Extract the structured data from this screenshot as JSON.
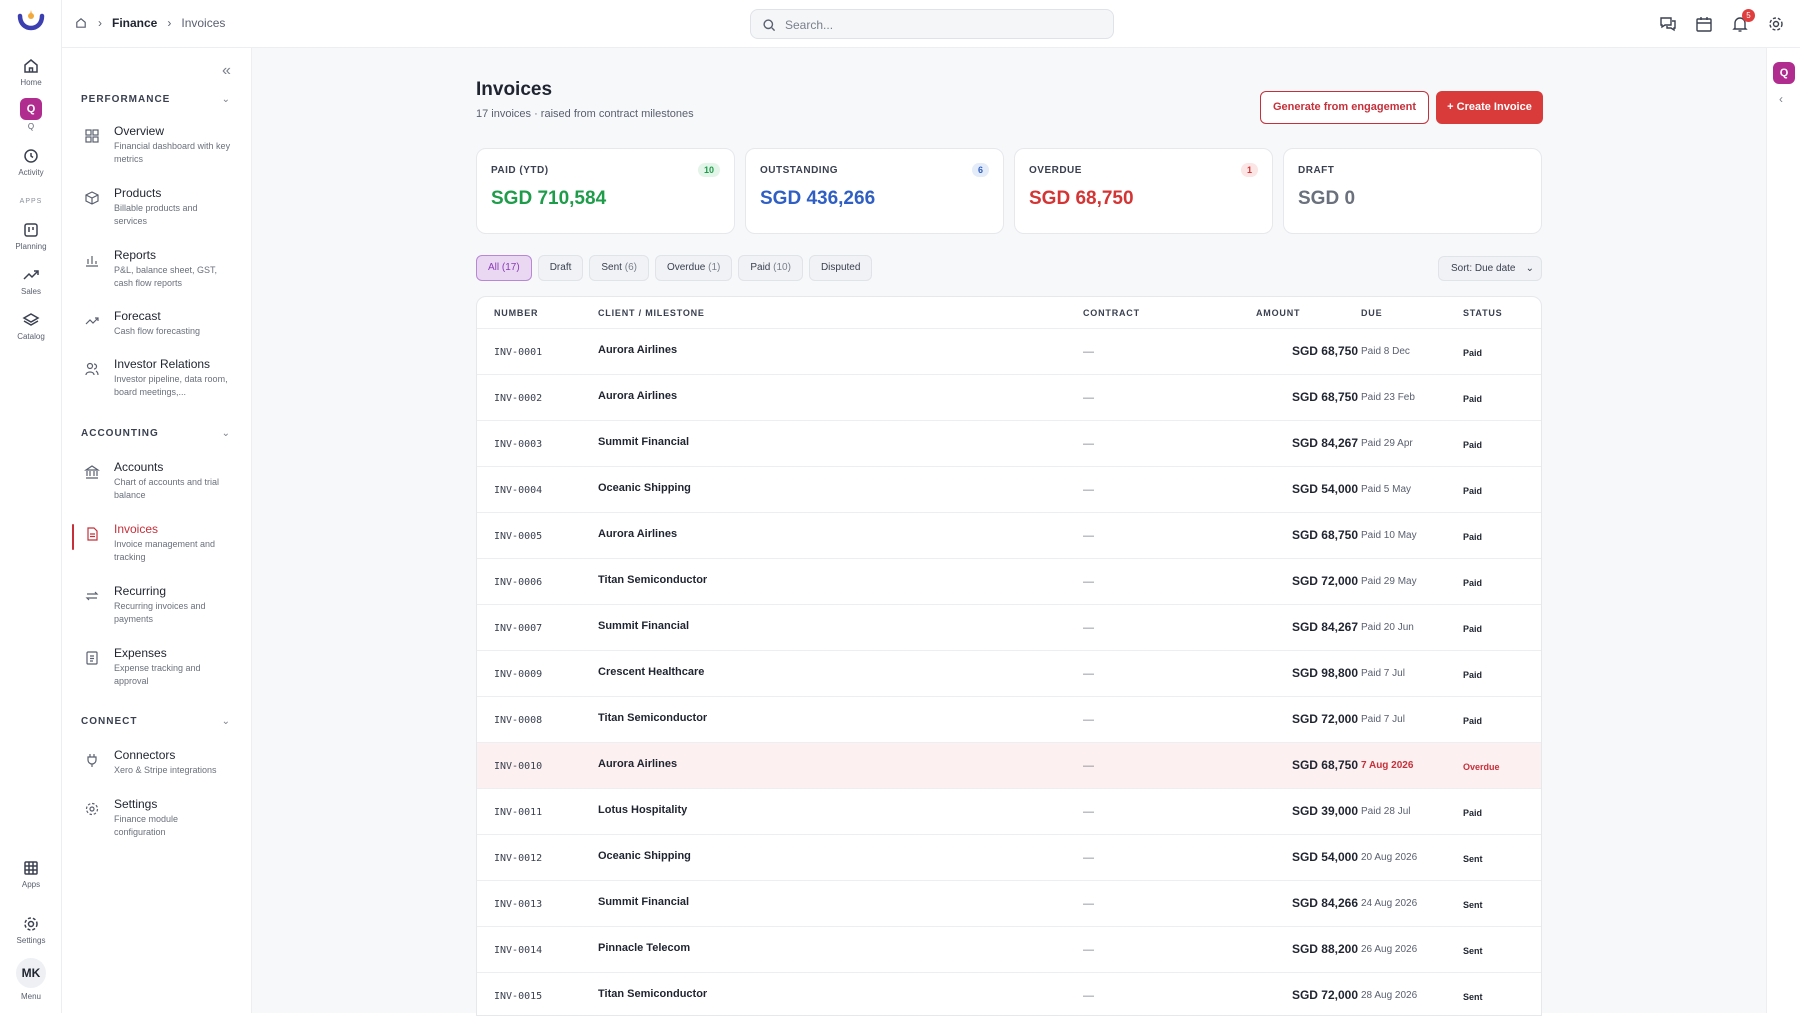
{
  "rail": {
    "items": [
      {
        "label": "Home",
        "icon": "home-icon"
      },
      {
        "label": "Q",
        "icon": "q-icon"
      },
      {
        "label": "Activity",
        "icon": "history-icon"
      },
      {
        "label": "Planning",
        "icon": "board-icon"
      },
      {
        "label": "Sales",
        "icon": "trend-icon"
      },
      {
        "label": "Catalog",
        "icon": "layers-icon"
      }
    ],
    "apps_section": "APPS",
    "apps": {
      "label": "Apps"
    },
    "settings": {
      "label": "Settings"
    },
    "menu": {
      "initials": "MK",
      "label": "Menu"
    },
    "q_glyph": "Q"
  },
  "topbar": {
    "breadcrumb": {
      "section": "Finance",
      "page": "Invoices"
    },
    "search_placeholder": "Search...",
    "notification_count": "5"
  },
  "sidebar": {
    "sections": [
      {
        "title": "PERFORMANCE"
      },
      {
        "title": "ACCOUNTING"
      },
      {
        "title": "CONNECT"
      }
    ],
    "items": [
      {
        "title": "Overview",
        "desc": "Financial dashboard with key metrics"
      },
      {
        "title": "Products",
        "desc": "Billable products and services"
      },
      {
        "title": "Reports",
        "desc": "P&L, balance sheet, GST, cash flow reports"
      },
      {
        "title": "Forecast",
        "desc": "Cash flow forecasting"
      },
      {
        "title": "Investor Relations",
        "desc": "Investor pipeline, data room, board meetings,..."
      },
      {
        "title": "Accounts",
        "desc": "Chart of accounts and trial balance"
      },
      {
        "title": "Invoices",
        "desc": "Invoice management and tracking"
      },
      {
        "title": "Recurring",
        "desc": "Recurring invoices and payments"
      },
      {
        "title": "Expenses",
        "desc": "Expense tracking and approval"
      },
      {
        "title": "Connectors",
        "desc": "Xero & Stripe integrations"
      },
      {
        "title": "Settings",
        "desc": "Finance module configuration"
      }
    ]
  },
  "page": {
    "title": "Invoices",
    "subtitle": "17 invoices · raised from contract milestones",
    "generate_label": "Generate from engagement",
    "create_label": "+ Create Invoice"
  },
  "cards": [
    {
      "label": "PAID (YTD)",
      "count": "10",
      "value": "SGD 710,584",
      "color": "#1e9c4a"
    },
    {
      "label": "OUTSTANDING",
      "count": "6",
      "value": "SGD 436,266",
      "color": "#2f5fc4"
    },
    {
      "label": "OVERDUE",
      "count": "1",
      "value": "SGD 68,750",
      "color": "#d43434"
    },
    {
      "label": "DRAFT",
      "count": "",
      "value": "SGD 0",
      "color": "#6a707c"
    }
  ],
  "filters": [
    {
      "label": "All",
      "count": "(17)"
    },
    {
      "label": "Draft",
      "count": ""
    },
    {
      "label": "Sent",
      "count": "(6)"
    },
    {
      "label": "Overdue",
      "count": "(1)"
    },
    {
      "label": "Paid",
      "count": "(10)"
    },
    {
      "label": "Disputed",
      "count": ""
    }
  ],
  "sort_label": "Sort: Due date",
  "table": {
    "headers": {
      "number": "NUMBER",
      "client": "CLIENT / MILESTONE",
      "contract": "CONTRACT",
      "amount": "AMOUNT",
      "due": "DUE",
      "status": "STATUS"
    },
    "rows": [
      {
        "number": "INV-0001",
        "client": "Aurora Airlines",
        "contract": "—",
        "amount": "SGD 68,750",
        "due": "Paid 8 Dec",
        "status": "Paid"
      },
      {
        "number": "INV-0002",
        "client": "Aurora Airlines",
        "contract": "—",
        "amount": "SGD 68,750",
        "due": "Paid 23 Feb",
        "status": "Paid"
      },
      {
        "number": "INV-0003",
        "client": "Summit Financial",
        "contract": "—",
        "amount": "SGD 84,267",
        "due": "Paid 29 Apr",
        "status": "Paid"
      },
      {
        "number": "INV-0004",
        "client": "Oceanic Shipping",
        "contract": "—",
        "amount": "SGD 54,000",
        "due": "Paid 5 May",
        "status": "Paid"
      },
      {
        "number": "INV-0005",
        "client": "Aurora Airlines",
        "contract": "—",
        "amount": "SGD 68,750",
        "due": "Paid 10 May",
        "status": "Paid"
      },
      {
        "number": "INV-0006",
        "client": "Titan Semiconductor",
        "contract": "—",
        "amount": "SGD 72,000",
        "due": "Paid 29 May",
        "status": "Paid"
      },
      {
        "number": "INV-0007",
        "client": "Summit Financial",
        "contract": "—",
        "amount": "SGD 84,267",
        "due": "Paid 20 Jun",
        "status": "Paid"
      },
      {
        "number": "INV-0009",
        "client": "Crescent Healthcare",
        "contract": "—",
        "amount": "SGD 98,800",
        "due": "Paid 7 Jul",
        "status": "Paid"
      },
      {
        "number": "INV-0008",
        "client": "Titan Semiconductor",
        "contract": "—",
        "amount": "SGD 72,000",
        "due": "Paid 7 Jul",
        "status": "Paid"
      },
      {
        "number": "INV-0010",
        "client": "Aurora Airlines",
        "contract": "—",
        "amount": "SGD 68,750",
        "due": "7 Aug 2026",
        "status": "Overdue"
      },
      {
        "number": "INV-0011",
        "client": "Lotus Hospitality",
        "contract": "—",
        "amount": "SGD 39,000",
        "due": "Paid 28 Jul",
        "status": "Paid"
      },
      {
        "number": "INV-0012",
        "client": "Oceanic Shipping",
        "contract": "—",
        "amount": "SGD 54,000",
        "due": "20 Aug 2026",
        "status": "Sent"
      },
      {
        "number": "INV-0013",
        "client": "Summit Financial",
        "contract": "—",
        "amount": "SGD 84,266",
        "due": "24 Aug 2026",
        "status": "Sent"
      },
      {
        "number": "INV-0014",
        "client": "Pinnacle Telecom",
        "contract": "—",
        "amount": "SGD 88,200",
        "due": "26 Aug 2026",
        "status": "Sent"
      },
      {
        "number": "INV-0015",
        "client": "Titan Semiconductor",
        "contract": "—",
        "amount": "SGD 72,000",
        "due": "28 Aug 2026",
        "status": "Sent"
      }
    ]
  },
  "colors": {
    "accent": "#d93a3a",
    "brand": "#b02c8e",
    "filter_active": "#8a3cb8"
  }
}
